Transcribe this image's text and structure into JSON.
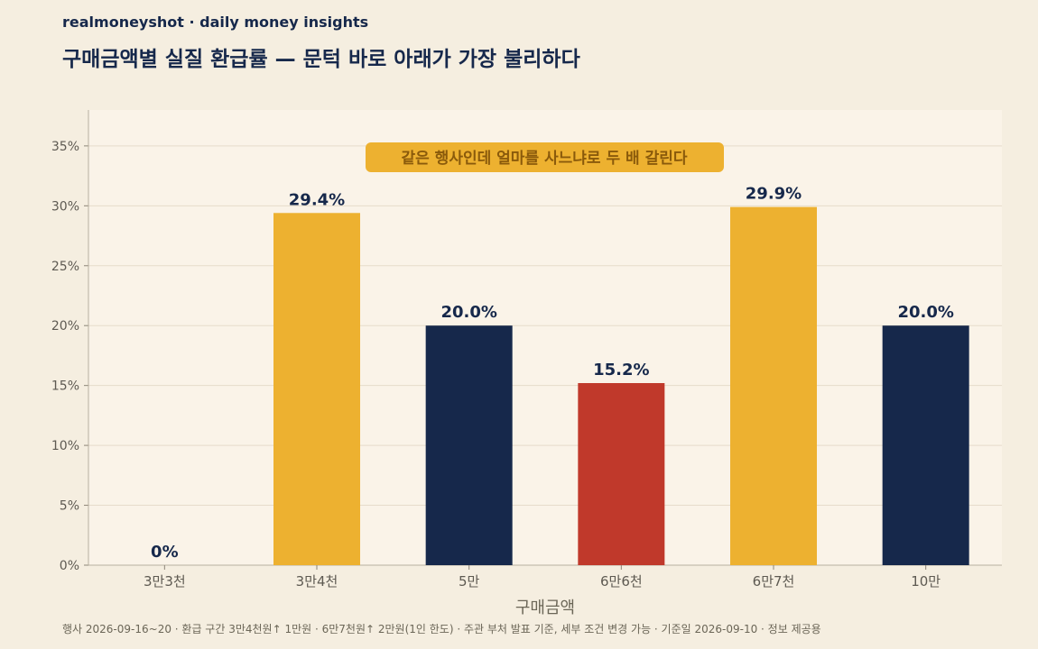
{
  "header": {
    "brand": "realmoneyshot · daily money insights",
    "title": "구매금액별 실질 환급률 — 문턱 바로 아래가 가장 불리하다"
  },
  "footer": {
    "note": "행사 2026-09-16~20 · 환급 구간 3만4천원↑ 1만원 · 6만7천원↑ 2만원(1인 한도) · 주관 부처 발표 기준, 세부 조건 변경 가능 · 기준일 2026-09-10 · 정보 제공용"
  },
  "colors": {
    "background": "#f5eee0",
    "plot_background": "#faf3e8",
    "gold": "#edb130",
    "navy": "#16284b",
    "red": "#c0392b",
    "callout_text": "#8a5a0b"
  },
  "chart_data": {
    "type": "bar",
    "categories": [
      "3만3천",
      "3만4천",
      "5만",
      "6만6천",
      "6만7천",
      "10만"
    ],
    "values": [
      0,
      29.4,
      20.0,
      15.2,
      29.9,
      20.0
    ],
    "value_labels": [
      "0%",
      "29.4%",
      "20.0%",
      "15.2%",
      "29.9%",
      "20.0%"
    ],
    "bar_colors": [
      "#16284b",
      "#edb130",
      "#16284b",
      "#c0392b",
      "#edb130",
      "#16284b"
    ],
    "xlabel": "구매금액",
    "ylabel": "",
    "ylim": [
      0,
      38
    ],
    "yticks": [
      0,
      5,
      10,
      15,
      20,
      25,
      30,
      35
    ],
    "ytick_labels": [
      "0%",
      "5%",
      "10%",
      "15%",
      "20%",
      "25%",
      "30%",
      "35%"
    ],
    "grid": true,
    "annotation": "같은 행사인데 얼마를 사느냐로 두 배 갈린다"
  }
}
